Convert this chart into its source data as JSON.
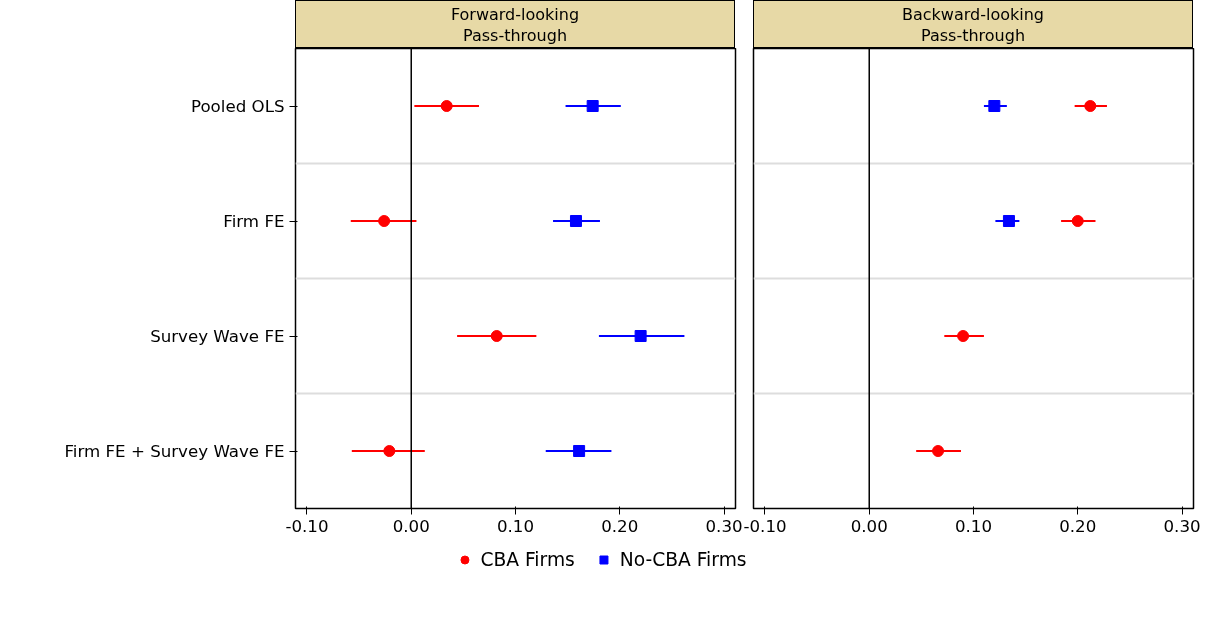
{
  "chart_data": [
    {
      "type": "scatter",
      "title": "Forward-looking\nPass-through",
      "orientation": "horizontal",
      "categories": [
        "Pooled OLS",
        "Firm FE",
        "Survey Wave FE",
        "Firm FE + Survey Wave FE"
      ],
      "series": [
        {
          "name": "CBA Firms",
          "color": "#ff0000",
          "marker": "circle",
          "values": [
            0.034,
            -0.026,
            0.082,
            -0.021
          ],
          "errors": [
            [
              0.003,
              0.065
            ],
            [
              -0.058,
              0.005
            ],
            [
              0.044,
              0.12
            ],
            [
              -0.057,
              0.013
            ]
          ]
        },
        {
          "name": "No-CBA Firms",
          "color": "#0000ff",
          "marker": "square",
          "values": [
            0.174,
            0.158,
            0.22,
            0.161
          ],
          "errors": [
            [
              0.148,
              0.201
            ],
            [
              0.136,
              0.181
            ],
            [
              0.18,
              0.262
            ],
            [
              0.129,
              0.192
            ]
          ]
        }
      ],
      "xlim": [
        -0.111,
        0.311
      ],
      "xticks": [
        {
          "value": -0.1,
          "label": "-0.10"
        },
        {
          "value": 0.0,
          "label": "0.00"
        },
        {
          "value": 0.1,
          "label": "0.10"
        },
        {
          "value": 0.2,
          "label": "0.20"
        },
        {
          "value": 0.3,
          "label": "0.30"
        }
      ],
      "ref_lines": [
        {
          "axis": "x",
          "value": 0,
          "color": "#000000"
        }
      ],
      "grid": "y",
      "legend": "bottom"
    },
    {
      "type": "scatter",
      "title": "Backward-looking\nPass-through",
      "orientation": "horizontal",
      "categories": [
        null,
        null,
        null,
        null
      ],
      "series": [
        {
          "color": "#ff0000",
          "marker": "circle",
          "values": [
            0.212,
            0.2,
            0.09,
            0.066
          ],
          "errors": [
            [
              0.197,
              0.228
            ],
            [
              0.184,
              0.217
            ],
            [
              0.072,
              0.11
            ],
            [
              0.045,
              0.088
            ]
          ]
        },
        {
          "color": "#0000ff",
          "marker": "square",
          "values": [
            0.12,
            0.134,
            null,
            null
          ],
          "errors": [
            [
              0.11,
              0.132
            ],
            [
              0.121,
              0.144
            ],
            null,
            null
          ]
        }
      ],
      "xlim": [
        -0.111,
        0.311
      ],
      "xticks": [
        {
          "value": -0.1,
          "label": "-0.10"
        },
        {
          "value": 0.0,
          "label": "0.00"
        },
        {
          "value": 0.1,
          "label": "0.10"
        },
        {
          "value": 0.2,
          "label": "0.20"
        },
        {
          "value": 0.3,
          "label": "0.30"
        }
      ],
      "ref_lines": [
        {
          "axis": "x",
          "value": 0,
          "color": "#000000"
        }
      ],
      "grid": "y",
      "tick_labels": "x"
    }
  ]
}
